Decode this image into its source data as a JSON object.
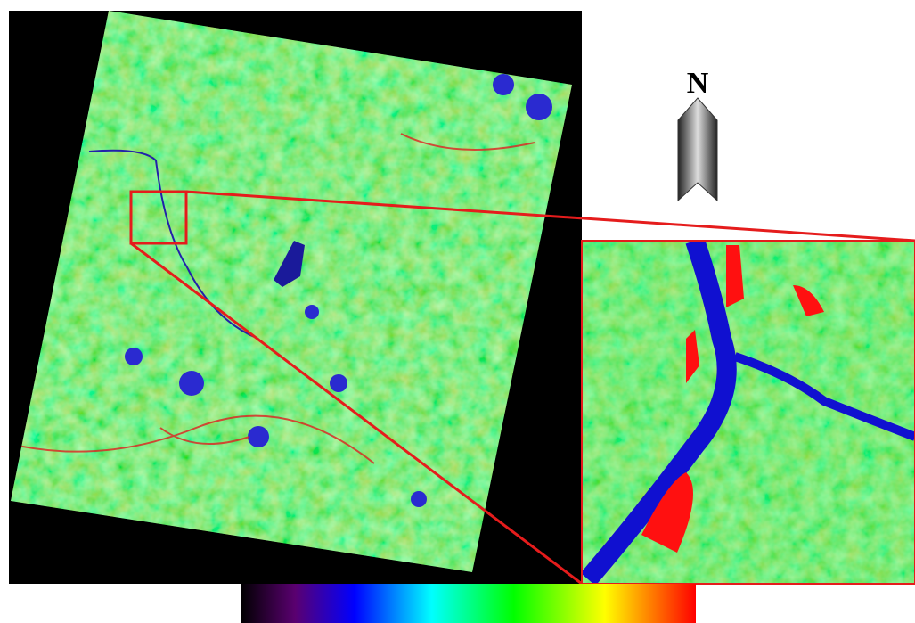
{
  "north_label": "N"
}
